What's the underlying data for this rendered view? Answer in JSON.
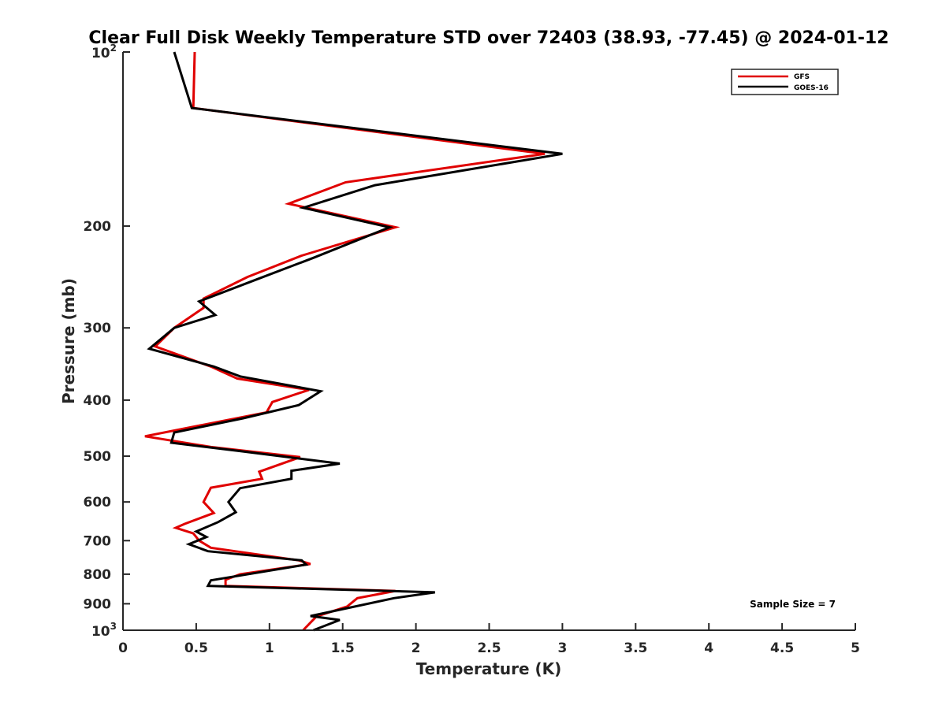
{
  "chart_data": {
    "type": "line",
    "title": "Clear Full Disk Weekly Temperature STD over 72403 (38.93, -77.45) @ 2024-01-12",
    "xlabel": "Temperature (K)",
    "ylabel": "Pressure (mb)",
    "xlim": [
      0,
      5
    ],
    "ylim": [
      100,
      1000
    ],
    "y_scale": "log",
    "y_reversed": true,
    "grid": false,
    "legend_position": "top-right",
    "x_ticks": [
      0,
      0.5,
      1,
      1.5,
      2,
      2.5,
      3,
      3.5,
      4,
      4.5,
      5
    ],
    "x_tick_labels": [
      "0",
      "0.5",
      "1",
      "1.5",
      "2",
      "2.5",
      "3",
      "3.5",
      "4",
      "4.5",
      "5"
    ],
    "y_ticks": [
      {
        "value": 100,
        "base": "10",
        "exp": "2"
      },
      {
        "value": 200,
        "label": "200"
      },
      {
        "value": 300,
        "label": "300"
      },
      {
        "value": 400,
        "label": "400"
      },
      {
        "value": 500,
        "label": "500"
      },
      {
        "value": 600,
        "label": "600"
      },
      {
        "value": 700,
        "label": "700"
      },
      {
        "value": 800,
        "label": "800"
      },
      {
        "value": 900,
        "label": "900"
      },
      {
        "value": 1000,
        "base": "10",
        "exp": "3"
      }
    ],
    "annotation": "Sample Size = 7",
    "series": [
      {
        "name": "GFS",
        "color": "#e00000",
        "points": [
          [
            0.49,
            100
          ],
          [
            0.48,
            125
          ],
          [
            2.88,
            150
          ],
          [
            1.52,
            168
          ],
          [
            1.13,
            183
          ],
          [
            1.86,
            201
          ],
          [
            1.22,
            225
          ],
          [
            0.85,
            245
          ],
          [
            0.55,
            267
          ],
          [
            0.55,
            277
          ],
          [
            0.35,
            300
          ],
          [
            0.22,
            323
          ],
          [
            0.6,
            350
          ],
          [
            0.78,
            367
          ],
          [
            1.27,
            384
          ],
          [
            1.02,
            403
          ],
          [
            0.98,
            420
          ],
          [
            0.15,
            462
          ],
          [
            0.6,
            482
          ],
          [
            1.21,
            502
          ],
          [
            0.93,
            532
          ],
          [
            0.95,
            547
          ],
          [
            0.6,
            567
          ],
          [
            0.55,
            600
          ],
          [
            0.62,
            627
          ],
          [
            0.42,
            655
          ],
          [
            0.36,
            665
          ],
          [
            0.48,
            680
          ],
          [
            0.52,
            700
          ],
          [
            0.6,
            720
          ],
          [
            1.2,
            757
          ],
          [
            1.28,
            768
          ],
          [
            0.8,
            800
          ],
          [
            0.7,
            818
          ],
          [
            0.7,
            838
          ],
          [
            1.86,
            855
          ],
          [
            1.6,
            880
          ],
          [
            1.53,
            910
          ],
          [
            1.32,
            947
          ],
          [
            1.23,
            1000
          ]
        ]
      },
      {
        "name": "GOES-16",
        "color": "#000000",
        "points": [
          [
            0.35,
            100
          ],
          [
            0.47,
            125
          ],
          [
            3.0,
            150
          ],
          [
            1.72,
            170
          ],
          [
            1.23,
            186
          ],
          [
            1.82,
            201
          ],
          [
            1.3,
            227
          ],
          [
            0.92,
            247
          ],
          [
            0.52,
            270
          ],
          [
            0.63,
            285
          ],
          [
            0.35,
            300
          ],
          [
            0.18,
            326
          ],
          [
            0.62,
            350
          ],
          [
            0.8,
            364
          ],
          [
            1.35,
            386
          ],
          [
            1.2,
            408
          ],
          [
            0.82,
            430
          ],
          [
            0.35,
            455
          ],
          [
            0.33,
            474
          ],
          [
            0.8,
            490
          ],
          [
            1.48,
            515
          ],
          [
            1.15,
            530
          ],
          [
            1.15,
            547
          ],
          [
            0.8,
            568
          ],
          [
            0.72,
            600
          ],
          [
            0.77,
            625
          ],
          [
            0.65,
            650
          ],
          [
            0.5,
            675
          ],
          [
            0.57,
            690
          ],
          [
            0.45,
            710
          ],
          [
            0.58,
            730
          ],
          [
            1.22,
            757
          ],
          [
            1.25,
            770
          ],
          [
            0.6,
            820
          ],
          [
            0.58,
            838
          ],
          [
            2.13,
            860
          ],
          [
            1.85,
            880
          ],
          [
            1.28,
            945
          ],
          [
            1.48,
            960
          ],
          [
            1.3,
            1000
          ]
        ]
      }
    ]
  }
}
